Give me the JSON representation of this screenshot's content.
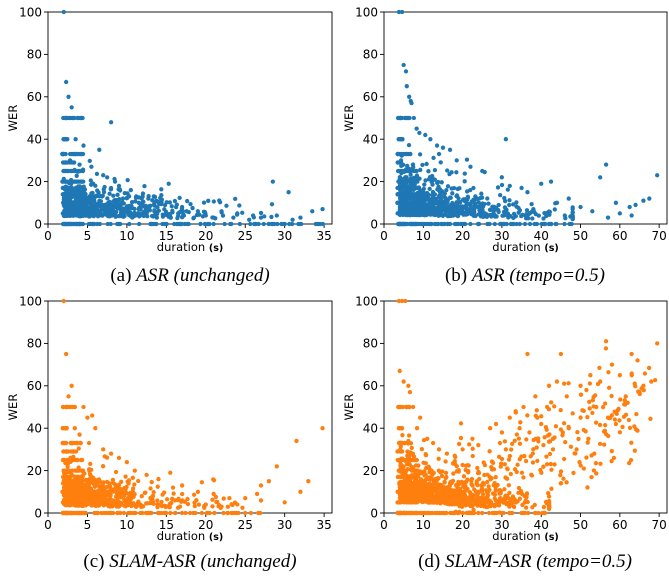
{
  "colors": {
    "asr": "#1f77b4",
    "slam": "#ff7f0e"
  },
  "chart_data": [
    {
      "type": "scatter",
      "title": "",
      "xlabel": "duration",
      "xunit": "(s)",
      "ylabel": "WER",
      "caption": {
        "letter": "(a)",
        "model": "ASR",
        "condition": "(unchanged)"
      },
      "xlim": [
        0,
        36
      ],
      "ylim": [
        0,
        100
      ],
      "xticks": [
        0,
        5,
        10,
        15,
        20,
        25,
        30,
        35
      ],
      "yticks": [
        0,
        20,
        40,
        60,
        80,
        100
      ],
      "color": "asr",
      "points": [
        [
          2.0,
          100
        ],
        [
          2.3,
          67
        ],
        [
          2.6,
          60
        ],
        [
          3.0,
          55
        ],
        [
          8.0,
          48
        ],
        [
          3.5,
          40
        ],
        [
          4.5,
          37
        ],
        [
          6.5,
          35
        ],
        [
          2.8,
          30
        ],
        [
          4.0,
          28
        ],
        [
          5.5,
          27
        ],
        [
          7.0,
          23
        ],
        [
          7.5,
          22
        ],
        [
          8.5,
          20
        ],
        [
          9.0,
          18
        ],
        [
          10.5,
          16
        ],
        [
          12.0,
          13
        ],
        [
          15.3,
          19
        ],
        [
          13.5,
          10
        ],
        [
          17.0,
          8
        ],
        [
          19.0,
          6
        ],
        [
          22.0,
          6
        ],
        [
          24.0,
          5
        ],
        [
          26.0,
          4
        ],
        [
          28.5,
          20
        ],
        [
          30.5,
          15
        ],
        [
          29.0,
          4
        ],
        [
          32.0,
          3
        ],
        [
          33.5,
          6
        ],
        [
          34.8,
          7
        ],
        [
          16.5,
          5
        ],
        [
          18.5,
          3
        ],
        [
          21.0,
          3
        ],
        [
          23.5,
          3
        ],
        [
          25.5,
          2
        ],
        [
          27.0,
          3
        ],
        [
          31.0,
          2
        ],
        [
          20.0,
          4
        ],
        [
          11.5,
          10
        ],
        [
          9.5,
          12
        ]
      ],
      "bands": [
        [
          1.8,
          2.5,
          [
            0,
            5,
            10,
            14,
            17,
            20,
            25,
            29,
            33,
            40,
            50
          ]
        ],
        [
          2.5,
          3.6,
          [
            0,
            5,
            10,
            14,
            17,
            20,
            25,
            29,
            33,
            50
          ]
        ],
        [
          3.6,
          4.5,
          [
            0,
            5,
            10,
            14,
            17,
            20,
            25,
            33,
            50
          ]
        ]
      ],
      "cloud": {
        "x0": 2,
        "x1": 35,
        "n": 750,
        "decay": 5.2,
        "mu": [
          6,
          4,
          3
        ],
        "sig": [
          9,
          6,
          4
        ],
        "seed": 11
      }
    },
    {
      "type": "scatter",
      "title": "",
      "xlabel": "duration",
      "xunit": "(s)",
      "ylabel": "WER",
      "caption": {
        "letter": "(b)",
        "model": "ASR",
        "condition": "(tempo=0.5)"
      },
      "xlim": [
        0,
        72
      ],
      "ylim": [
        0,
        100
      ],
      "xticks": [
        0,
        10,
        20,
        30,
        40,
        50,
        60,
        70
      ],
      "yticks": [
        0,
        20,
        40,
        60,
        80,
        100
      ],
      "color": "asr",
      "points": [
        [
          3.8,
          100
        ],
        [
          4.6,
          100
        ],
        [
          5.0,
          75
        ],
        [
          5.6,
          72
        ],
        [
          5.8,
          65
        ],
        [
          6.4,
          60
        ],
        [
          6.8,
          58
        ],
        [
          7.0,
          57
        ],
        [
          4.2,
          50
        ],
        [
          7.6,
          50
        ],
        [
          8.3,
          45
        ],
        [
          9.0,
          43
        ],
        [
          10.5,
          42
        ],
        [
          11.8,
          40
        ],
        [
          13.5,
          37
        ],
        [
          15.0,
          36
        ],
        [
          16.8,
          35
        ],
        [
          14.0,
          33
        ],
        [
          18.5,
          30
        ],
        [
          22.0,
          27
        ],
        [
          25.0,
          25
        ],
        [
          31.0,
          40
        ],
        [
          32.0,
          18
        ],
        [
          35.0,
          17
        ],
        [
          36.5,
          15
        ],
        [
          40.0,
          19
        ],
        [
          42.5,
          20
        ],
        [
          44.0,
          10
        ],
        [
          47.0,
          12
        ],
        [
          50.0,
          8
        ],
        [
          53.0,
          6
        ],
        [
          56.5,
          28
        ],
        [
          55.0,
          22
        ],
        [
          59.0,
          10
        ],
        [
          62.5,
          8
        ],
        [
          64.0,
          9
        ],
        [
          66.0,
          11
        ],
        [
          67.5,
          12
        ],
        [
          69.5,
          23
        ],
        [
          57.0,
          3
        ],
        [
          60.0,
          5
        ],
        [
          63.0,
          4
        ],
        [
          46.0,
          4
        ],
        [
          41.0,
          5
        ],
        [
          38.0,
          7
        ]
      ],
      "bands": [
        [
          3.4,
          4.8,
          [
            0,
            5,
            10,
            14,
            17,
            20,
            25,
            29,
            33,
            40,
            50
          ]
        ],
        [
          4.8,
          6.8,
          [
            0,
            5,
            10,
            14,
            17,
            20,
            25,
            33,
            50
          ]
        ],
        [
          6.8,
          8.5,
          [
            0,
            5,
            10,
            14,
            17,
            20,
            25
          ]
        ]
      ],
      "cloud": {
        "x0": 4,
        "x1": 48,
        "n": 850,
        "decay": 10,
        "mu": [
          7,
          5,
          3
        ],
        "sig": [
          11,
          7,
          4
        ],
        "seed": 23
      }
    },
    {
      "type": "scatter",
      "title": "",
      "xlabel": "duration",
      "xunit": "(s)",
      "ylabel": "WER",
      "caption": {
        "letter": "(c)",
        "model": "SLAM-ASR",
        "condition": "(unchanged)"
      },
      "xlim": [
        0,
        36
      ],
      "ylim": [
        0,
        100
      ],
      "xticks": [
        0,
        5,
        10,
        15,
        20,
        25,
        30,
        35
      ],
      "yticks": [
        0,
        20,
        40,
        60,
        80,
        100
      ],
      "color": "slam",
      "points": [
        [
          2.0,
          100
        ],
        [
          2.3,
          75
        ],
        [
          3.0,
          60
        ],
        [
          2.6,
          55
        ],
        [
          4.5,
          50
        ],
        [
          5.0,
          45
        ],
        [
          5.6,
          46
        ],
        [
          6.0,
          40
        ],
        [
          3.4,
          40
        ],
        [
          4.0,
          37
        ],
        [
          5.2,
          33
        ],
        [
          7.0,
          30
        ],
        [
          8.0,
          28
        ],
        [
          9.0,
          26
        ],
        [
          10.0,
          24
        ],
        [
          11.0,
          20
        ],
        [
          12.5,
          18
        ],
        [
          14.0,
          16
        ],
        [
          15.5,
          19
        ],
        [
          17.0,
          13
        ],
        [
          19.0,
          10
        ],
        [
          21.0,
          9
        ],
        [
          23.0,
          7
        ],
        [
          25.0,
          7
        ],
        [
          26.5,
          9
        ],
        [
          27.0,
          13
        ],
        [
          28.0,
          15
        ],
        [
          29.0,
          22
        ],
        [
          31.5,
          34
        ],
        [
          34.8,
          40
        ],
        [
          33.0,
          15
        ],
        [
          32.0,
          10
        ],
        [
          30.0,
          5
        ],
        [
          24.0,
          4
        ],
        [
          22.0,
          3
        ],
        [
          20.0,
          4
        ]
      ],
      "bands": [
        [
          1.8,
          2.5,
          [
            0,
            5,
            10,
            14,
            17,
            20,
            25,
            29,
            33,
            40,
            50
          ]
        ],
        [
          2.5,
          3.6,
          [
            0,
            5,
            10,
            14,
            17,
            20,
            25,
            29,
            33,
            50
          ]
        ],
        [
          3.6,
          4.5,
          [
            0,
            5,
            10,
            14,
            17,
            20,
            25,
            33
          ]
        ]
      ],
      "cloud": {
        "x0": 2,
        "x1": 27,
        "n": 700,
        "decay": 5,
        "mu": [
          6,
          4,
          3
        ],
        "sig": [
          10,
          6,
          4
        ],
        "seed": 37
      }
    },
    {
      "type": "scatter",
      "title": "",
      "xlabel": "duration",
      "xunit": "(s)",
      "ylabel": "WER",
      "caption": {
        "letter": "(d)",
        "model": "SLAM-ASR",
        "condition": "(tempo=0.5)"
      },
      "xlim": [
        0,
        72
      ],
      "ylim": [
        0,
        100
      ],
      "xticks": [
        0,
        10,
        20,
        30,
        40,
        50,
        60,
        70
      ],
      "yticks": [
        0,
        20,
        40,
        60,
        80,
        100
      ],
      "color": "slam",
      "points": [
        [
          3.8,
          100
        ],
        [
          4.6,
          100
        ],
        [
          5.4,
          100
        ],
        [
          4.0,
          67
        ],
        [
          5.0,
          62
        ],
        [
          6.2,
          60
        ],
        [
          6.6,
          57
        ],
        [
          7.4,
          50
        ],
        [
          8.4,
          40
        ],
        [
          9.2,
          45
        ],
        [
          11.0,
          35
        ],
        [
          12.5,
          33
        ],
        [
          14.0,
          30
        ],
        [
          16.0,
          28
        ],
        [
          18.0,
          27
        ],
        [
          20.0,
          30
        ],
        [
          22.5,
          35
        ],
        [
          24.0,
          32
        ],
        [
          27.0,
          40
        ],
        [
          28.5,
          42
        ],
        [
          30.0,
          38
        ],
        [
          32.0,
          45
        ],
        [
          33.5,
          48
        ],
        [
          35.5,
          50
        ],
        [
          36.5,
          75
        ],
        [
          38.5,
          55
        ],
        [
          40.0,
          42
        ],
        [
          42.0,
          60
        ],
        [
          44.0,
          62
        ],
        [
          45.0,
          75
        ],
        [
          46.5,
          55
        ],
        [
          48.0,
          47
        ],
        [
          50.0,
          60
        ],
        [
          51.5,
          58
        ],
        [
          52.5,
          65
        ],
        [
          55.0,
          62
        ],
        [
          56.5,
          81
        ],
        [
          58.0,
          70
        ],
        [
          60.0,
          65
        ],
        [
          61.5,
          55
        ],
        [
          63.0,
          75
        ],
        [
          64.5,
          72
        ],
        [
          66.0,
          60
        ],
        [
          68.0,
          62
        ],
        [
          69.5,
          80
        ],
        [
          54.0,
          50
        ],
        [
          57.0,
          45
        ],
        [
          59.0,
          42
        ],
        [
          62.0,
          52
        ],
        [
          47.0,
          40
        ],
        [
          43.0,
          35
        ],
        [
          45.5,
          38
        ],
        [
          49.0,
          30
        ],
        [
          53.5,
          28
        ],
        [
          58.5,
          26
        ],
        [
          52.0,
          35
        ],
        [
          41.5,
          50
        ],
        [
          39.0,
          45
        ],
        [
          37.0,
          38
        ],
        [
          34.5,
          40
        ],
        [
          31.0,
          30
        ],
        [
          29.5,
          33
        ]
      ],
      "bands": [
        [
          3.4,
          4.8,
          [
            0,
            5,
            10,
            14,
            17,
            20,
            25,
            29,
            33,
            40,
            50
          ]
        ],
        [
          4.8,
          6.8,
          [
            0,
            5,
            10,
            14,
            17,
            20,
            25,
            33,
            50
          ]
        ],
        [
          6.8,
          8.5,
          [
            0,
            5,
            10,
            14,
            17,
            20,
            25
          ]
        ]
      ],
      "cloud": {
        "x0": 4,
        "x1": 42,
        "n": 850,
        "decay": 10,
        "mu": [
          9,
          5,
          3
        ],
        "sig": [
          12,
          8,
          5
        ],
        "seed": 53
      },
      "trend_cloud": {
        "x0": 18,
        "x1": 70,
        "n": 260,
        "a": 15,
        "b": 0.82,
        "spread": 12,
        "seed": 71
      }
    }
  ]
}
